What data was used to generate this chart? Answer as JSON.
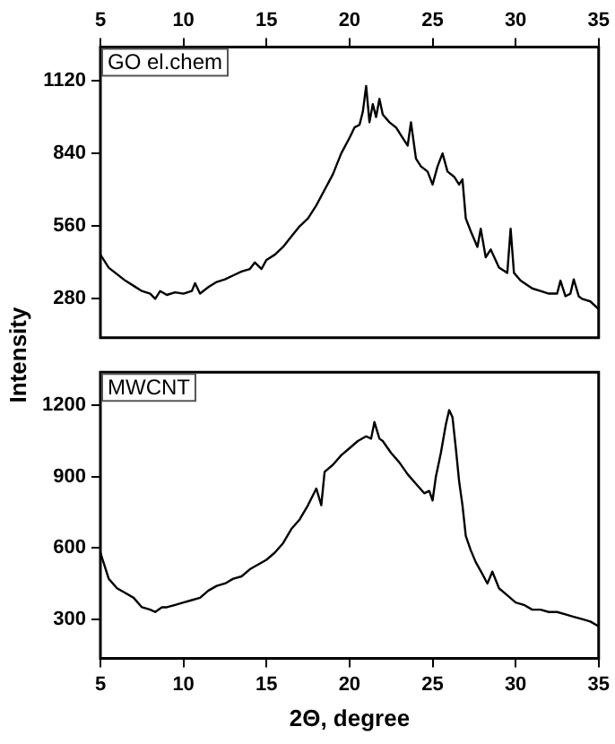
{
  "chart_data": [
    {
      "type": "line",
      "ylabel": "Intensity",
      "xlim": [
        5,
        35
      ],
      "xticks": [
        5,
        10,
        15,
        20,
        25,
        30,
        35
      ],
      "ylim": [
        130,
        1250
      ],
      "yticks": [
        280,
        560,
        840,
        1120
      ],
      "grid": false,
      "legend": "top left",
      "series": [
        {
          "name": "GO el.chem",
          "color": "#000000",
          "x": [
            5,
            5.5,
            6,
            6.5,
            7,
            7.5,
            8,
            8.3,
            8.6,
            9,
            9.5,
            10,
            10.5,
            10.7,
            11,
            11.5,
            12,
            12.5,
            13,
            13.5,
            14,
            14.3,
            14.7,
            15,
            15.5,
            16,
            16.5,
            17,
            17.5,
            18,
            18.5,
            19,
            19.5,
            20,
            20.3,
            20.6,
            20.8,
            21,
            21.2,
            21.4,
            21.6,
            21.8,
            22,
            22.4,
            22.8,
            23.2,
            23.5,
            23.7,
            24,
            24.3,
            24.7,
            25,
            25.3,
            25.6,
            25.9,
            26.3,
            26.6,
            26.8,
            27,
            27.3,
            27.7,
            27.9,
            28.2,
            28.5,
            29,
            29.5,
            29.7,
            29.9,
            30.3,
            31,
            31.5,
            32,
            32.5,
            32.7,
            33,
            33.3,
            33.5,
            33.8,
            34,
            34.5,
            35
          ],
          "values": [
            450,
            400,
            375,
            350,
            330,
            310,
            300,
            280,
            310,
            295,
            305,
            300,
            310,
            340,
            300,
            325,
            345,
            355,
            370,
            385,
            395,
            420,
            395,
            430,
            450,
            480,
            520,
            560,
            590,
            640,
            700,
            760,
            840,
            900,
            940,
            950,
            1000,
            1100,
            960,
            1030,
            980,
            1050,
            990,
            960,
            940,
            900,
            870,
            960,
            820,
            790,
            770,
            720,
            790,
            840,
            770,
            750,
            720,
            740,
            590,
            540,
            480,
            550,
            440,
            470,
            400,
            380,
            550,
            380,
            350,
            320,
            310,
            300,
            300,
            350,
            290,
            300,
            355,
            290,
            280,
            270,
            240
          ]
        }
      ]
    },
    {
      "type": "line",
      "xlabel": "2Θ, degree",
      "xlim": [
        5,
        35
      ],
      "xticks": [
        5,
        10,
        15,
        20,
        25,
        30,
        35
      ],
      "ylim": [
        135,
        1340
      ],
      "yticks": [
        300,
        600,
        900,
        1200
      ],
      "grid": false,
      "legend": "top left",
      "series": [
        {
          "name": "MWCNT",
          "color": "#000000",
          "x": [
            5,
            5.5,
            6,
            6.5,
            7,
            7.5,
            8,
            8.3,
            8.7,
            9,
            9.5,
            10,
            10.5,
            11,
            11.5,
            12,
            12.5,
            13,
            13.5,
            14,
            14.5,
            15,
            15.5,
            16,
            16.5,
            17,
            17.5,
            18,
            18.3,
            18.5,
            19,
            19.5,
            20,
            20.5,
            21,
            21.3,
            21.5,
            21.8,
            22,
            22.5,
            23,
            23.5,
            24,
            24.5,
            24.8,
            25,
            25.2,
            25.5,
            25.8,
            26,
            26.2,
            26.4,
            26.6,
            26.8,
            27,
            27.3,
            27.6,
            28,
            28.3,
            28.6,
            29,
            29.5,
            30,
            30.5,
            31,
            31.5,
            32,
            32.5,
            33,
            33.5,
            34,
            34.5,
            35
          ],
          "values": [
            580,
            470,
            430,
            410,
            390,
            350,
            340,
            330,
            350,
            350,
            360,
            370,
            380,
            390,
            420,
            440,
            450,
            470,
            480,
            510,
            530,
            550,
            580,
            620,
            680,
            720,
            780,
            850,
            780,
            920,
            950,
            990,
            1020,
            1050,
            1070,
            1060,
            1130,
            1060,
            1050,
            1000,
            960,
            910,
            870,
            830,
            840,
            800,
            900,
            1000,
            1120,
            1180,
            1150,
            1020,
            880,
            780,
            650,
            590,
            540,
            490,
            450,
            500,
            430,
            400,
            370,
            360,
            340,
            340,
            330,
            330,
            320,
            310,
            300,
            290,
            270
          ]
        }
      ]
    }
  ]
}
